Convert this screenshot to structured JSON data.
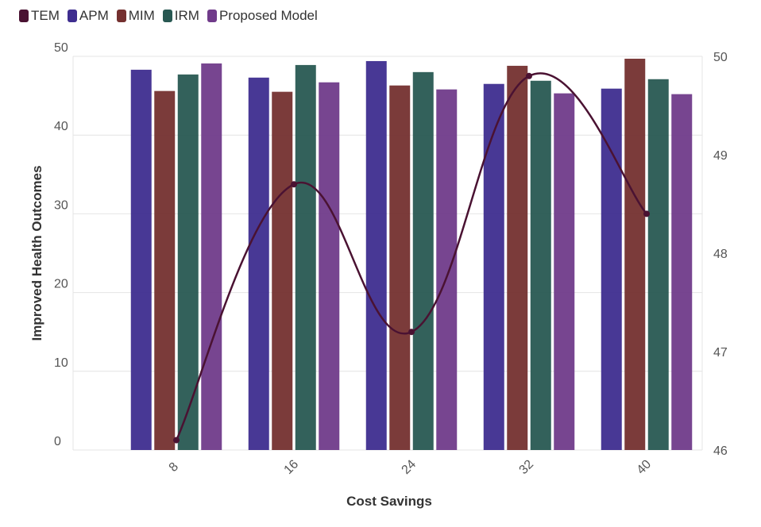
{
  "chart_data": {
    "type": "bar",
    "title": "",
    "xlabel": "Cost Savings",
    "ylabel": "Improved Health Outcomes",
    "categories": [
      "8",
      "16",
      "24",
      "32",
      "40"
    ],
    "ylim": [
      0,
      50
    ],
    "y_ticks": [
      "0",
      "10",
      "20",
      "30",
      "40",
      "50"
    ],
    "y2lim": [
      46,
      50
    ],
    "y2_ticks": [
      "46",
      "47",
      "48",
      "49",
      "50"
    ],
    "grid": true,
    "legend_position": "top-left",
    "series": [
      {
        "name": "TEM",
        "type": "line",
        "axis": "right",
        "color": "#4a1232",
        "values": [
          46.1,
          48.7,
          47.2,
          49.8,
          48.4
        ]
      },
      {
        "name": "APM",
        "type": "bar",
        "axis": "left",
        "color": "#3e2d8f",
        "values": [
          48.3,
          47.3,
          49.4,
          46.5,
          45.9
        ]
      },
      {
        "name": "MIM",
        "type": "bar",
        "axis": "left",
        "color": "#74302f",
        "values": [
          45.6,
          45.5,
          46.3,
          48.8,
          49.7
        ]
      },
      {
        "name": "IRM",
        "type": "bar",
        "axis": "left",
        "color": "#285852",
        "values": [
          47.7,
          48.9,
          48.0,
          46.9,
          47.1
        ]
      },
      {
        "name": "Proposed Model",
        "type": "bar",
        "axis": "left",
        "color": "#703b8a",
        "values": [
          49.1,
          46.7,
          45.8,
          45.3,
          45.2
        ]
      }
    ]
  }
}
